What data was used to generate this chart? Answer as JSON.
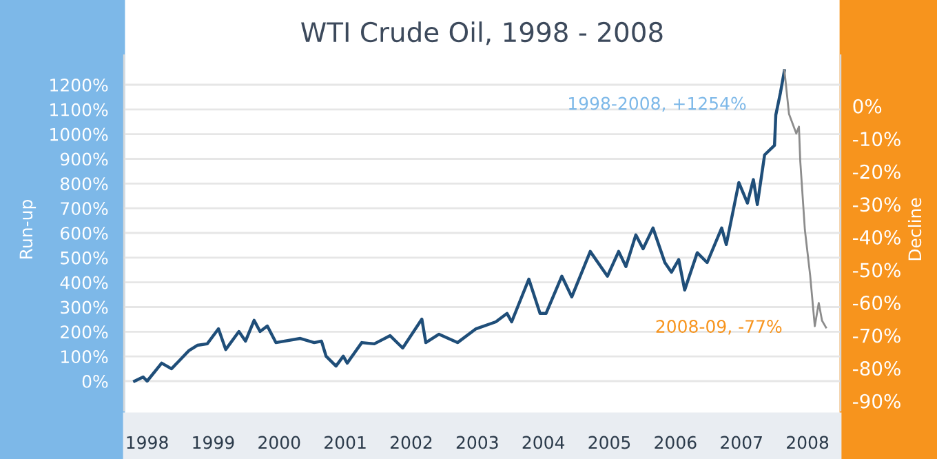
{
  "chart_data": {
    "type": "line",
    "title": "WTI Crude Oil, 1998 - 2008",
    "ylabel": "Run-up",
    "y2label": "Decline",
    "series": [
      {
        "color": "#1f4e79",
        "x": [
          1997.81,
          1997.94,
          1998.0,
          1998.22,
          1998.37,
          1998.63,
          1998.76,
          1998.91,
          1999.08,
          1999.19,
          1999.39,
          1999.49,
          1999.62,
          1999.71,
          1999.82,
          1999.95,
          2000.32,
          2000.53,
          2000.64,
          2000.71,
          2000.86,
          2000.97,
          2001.03,
          2001.25,
          2001.44,
          2001.68,
          2001.87,
          2002.16,
          2002.22,
          2002.42,
          2002.7,
          2002.98,
          2003.28,
          2003.45,
          2003.52,
          2003.78,
          2003.95,
          2004.04,
          2004.28,
          2004.43,
          2004.71,
          2004.97,
          2005.14,
          2005.25,
          2005.4,
          2005.51,
          2005.66,
          2005.84,
          2005.94,
          2006.05,
          2006.14,
          2006.33,
          2006.48,
          2006.7,
          2006.77,
          2006.96,
          2007.09,
          2007.18,
          2007.24,
          2007.35,
          2007.5,
          2007.52,
          2007.59,
          2007.65
        ],
        "values": [
          0,
          17,
          0,
          73,
          50,
          123,
          145,
          151,
          212,
          128,
          201,
          162,
          246,
          201,
          223,
          156,
          173,
          156,
          162,
          101,
          61,
          101,
          73,
          156,
          151,
          184,
          134,
          251,
          156,
          190,
          156,
          212,
          240,
          274,
          240,
          413,
          274,
          274,
          425,
          341,
          525,
          425,
          525,
          464,
          592,
          536,
          620,
          480,
          441,
          492,
          369,
          520,
          480,
          620,
          553,
          804,
          721,
          816,
          715,
          916,
          955,
          1078,
          1168,
          1257
        ]
      },
      {
        "color": "#8c8c8c",
        "axis": "y2",
        "x": [
          2007.65,
          2007.72,
          2007.83,
          2007.87,
          2007.89,
          2007.96,
          2008.04,
          2008.11,
          2008.17,
          2008.22,
          2008.28
        ],
        "values": [
          10.9,
          -2.5,
          -8.4,
          -6.3,
          -16.8,
          -37.8,
          -51.7,
          -67.2,
          -60.1,
          -65.5,
          -67.6
        ]
      }
    ],
    "xlim": [
      1997.65,
      2008.5
    ],
    "xticks": [
      1998,
      1999,
      2000,
      2001,
      2002,
      2003,
      2004,
      2005,
      2006,
      2007,
      2008
    ],
    "ylim": [
      -120,
      1320
    ],
    "yticks": [
      {
        "value": 0,
        "label": "0%"
      },
      {
        "value": 100,
        "label": "100%"
      },
      {
        "value": 200,
        "label": "200%"
      },
      {
        "value": 300,
        "label": "300%"
      },
      {
        "value": 400,
        "label": "400%"
      },
      {
        "value": 500,
        "label": "500%"
      },
      {
        "value": 600,
        "label": "600%"
      },
      {
        "value": 700,
        "label": "700%"
      },
      {
        "value": 800,
        "label": "800%"
      },
      {
        "value": 900,
        "label": "900%"
      },
      {
        "value": 1000,
        "label": "1000%"
      },
      {
        "value": 1100,
        "label": "1100%"
      },
      {
        "value": 1200,
        "label": "1200%"
      }
    ],
    "y2lim": [
      -93,
      15.5
    ],
    "y2ticks": [
      {
        "value": 0,
        "label": "0%"
      },
      {
        "value": -10,
        "label": "-10%"
      },
      {
        "value": -20,
        "label": "-20%"
      },
      {
        "value": -30,
        "label": "-30%"
      },
      {
        "value": -40,
        "label": "-40%"
      },
      {
        "value": -50,
        "label": "-50%"
      },
      {
        "value": -60,
        "label": "-60%"
      },
      {
        "value": -70,
        "label": "-70%"
      },
      {
        "value": -80,
        "label": "-80%"
      },
      {
        "value": -90,
        "label": "-90%"
      }
    ],
    "annotations": [
      "1998-2008, +1254%",
      "2008-09, -77%"
    ],
    "grid": "y"
  }
}
